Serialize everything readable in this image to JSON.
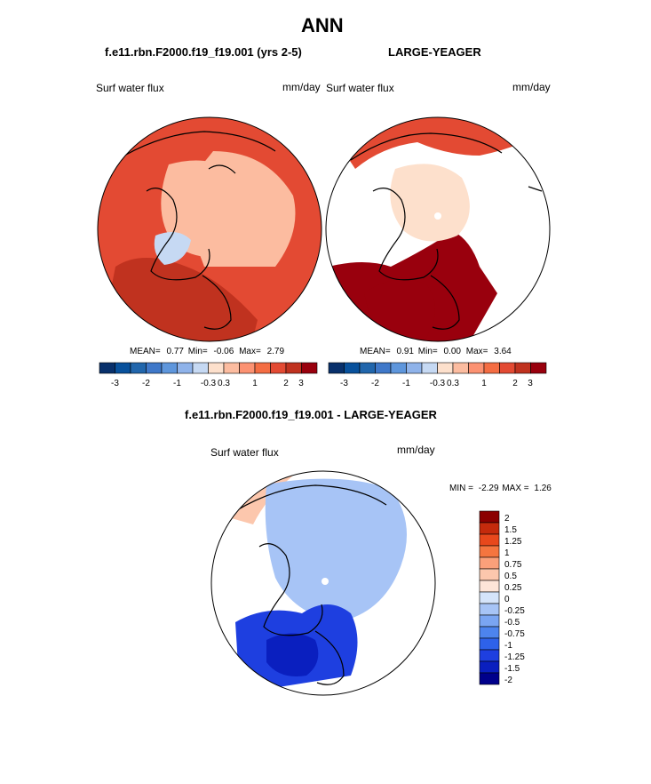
{
  "page": {
    "title": "ANN",
    "left_subtitle": "f.e11.rbn.F2000.f19_f19.001 (yrs 2-5)",
    "right_subtitle": "LARGE-YEAGER",
    "diff_subtitle": "f.e11.rbn.F2000.f19_f19.001 - LARGE-YEAGER"
  },
  "colors": {
    "land_outline": "#000000",
    "seq_palette": [
      "#08306b",
      "#08519c",
      "#2166ac",
      "#3f78c9",
      "#5e96dc",
      "#8fb3ea",
      "#c6d9f3",
      "#fde0cc",
      "#fcbca0",
      "#fc9272",
      "#f46d43",
      "#e34a33",
      "#c0321f",
      "#99000d"
    ],
    "diff_palette": [
      "#00008b",
      "#0a1fbf",
      "#1e3fe0",
      "#2e62ea",
      "#4d84ee",
      "#7aa5f2",
      "#a7c4f6",
      "#d5e4fa",
      "#fde5d8",
      "#fcc7ad",
      "#fba07a",
      "#f5753f",
      "#e8481c",
      "#c52a0c",
      "#8b0000"
    ]
  },
  "chart_data": [
    {
      "type": "heatmap",
      "projection": "north-polar-stereographic",
      "panel": "model",
      "title": "f.e11.rbn.F2000.f19_f19.001 (yrs 2-5)",
      "field_label": "Surf water flux",
      "units": "mm/day",
      "stats": {
        "mean_label": "MEAN=",
        "mean": "0.77",
        "min_label": "Min=",
        "min": "-0.06",
        "max_label": "Max=",
        "max": "2.79"
      },
      "colorbar": {
        "levels": [
          "-3",
          "-2",
          "-1",
          "-0.3",
          "0.3",
          "1",
          "2",
          "3"
        ],
        "orientation": "horizontal"
      },
      "regions": [
        {
          "name": "outer-ocean-ring",
          "value": 1.5
        },
        {
          "name": "arctic-basin",
          "value": 0.3
        },
        {
          "name": "barents-north-atlantic",
          "value": 2.0
        },
        {
          "name": "hudson-bay",
          "value": -0.1
        },
        {
          "name": "beaufort-east-siberian",
          "value": 0.5
        }
      ]
    },
    {
      "type": "heatmap",
      "projection": "north-polar-stereographic",
      "panel": "observations",
      "title": "LARGE-YEAGER",
      "field_label": "Surf water flux",
      "units": "mm/day",
      "stats": {
        "mean_label": "MEAN=",
        "mean": "0.91",
        "min_label": "Min=",
        "min": "0.00",
        "max_label": "Max=",
        "max": "3.64"
      },
      "colorbar": {
        "levels": [
          "-3",
          "-2",
          "-1",
          "-0.3",
          "0.3",
          "1",
          "2",
          "3"
        ],
        "orientation": "horizontal"
      },
      "regions": [
        {
          "name": "north-pacific",
          "value": 1.5
        },
        {
          "name": "arctic-basin",
          "value": 0.0
        },
        {
          "name": "north-atlantic",
          "value": 2.5
        },
        {
          "name": "nordic-seas",
          "value": 3.5
        }
      ]
    },
    {
      "type": "heatmap",
      "projection": "north-polar-stereographic",
      "panel": "difference",
      "title": "f.e11.rbn.F2000.f19_f19.001 - LARGE-YEAGER",
      "field_label": "Surf water flux",
      "units": "mm/day",
      "stats": {
        "min_label": "MIN =",
        "min": "-2.29",
        "max_label": "MAX =",
        "max": "1.26"
      },
      "colorbar": {
        "levels": [
          "2",
          "1.5",
          "1.25",
          "1",
          "0.75",
          "0.5",
          "0.25",
          "0",
          "-0.25",
          "-0.5",
          "-0.75",
          "-1",
          "-1.25",
          "-1.5",
          "-2"
        ],
        "orientation": "vertical"
      },
      "regions": [
        {
          "name": "north-pacific",
          "value": 0.5
        },
        {
          "name": "arctic-basin",
          "value": -0.25
        },
        {
          "name": "north-atlantic",
          "value": -1.25
        },
        {
          "name": "nordic-seas",
          "value": -1.5
        }
      ]
    }
  ]
}
